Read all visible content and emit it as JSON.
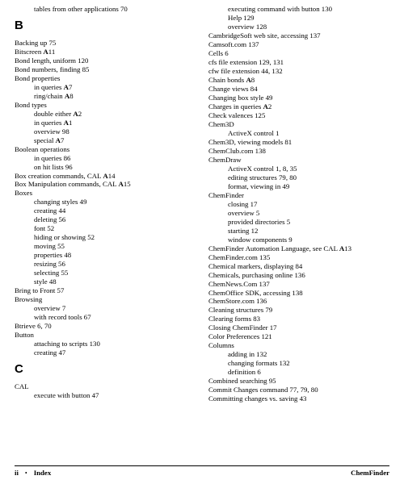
{
  "left_column": {
    "top_line": "tables from other applications 70",
    "sections": [
      {
        "letter": "B",
        "groups": [
          [
            {
              "t": "Backing up 75"
            },
            {
              "t": "Bitscreen ",
              "a": "A",
              "after": "11"
            },
            {
              "t": "Bond length, uniform 120"
            },
            {
              "t": "Bond numbers, finding 85"
            }
          ],
          [
            {
              "t": "Bond properties"
            },
            {
              "t": "in queries ",
              "a": "A",
              "after": "7",
              "sub": true
            },
            {
              "t": "ring/chain ",
              "a": "A",
              "after": "8",
              "sub": true
            }
          ],
          [
            {
              "t": "Bond types"
            },
            {
              "t": "double either ",
              "a": "A",
              "after": "2",
              "sub": true
            },
            {
              "t": "in queries ",
              "a": "A",
              "after": "1",
              "sub": true
            },
            {
              "t": "overview 98",
              "sub": true
            },
            {
              "t": "special ",
              "a": "A",
              "after": "7",
              "sub": true
            }
          ],
          [
            {
              "t": "Boolean operations"
            },
            {
              "t": "in queries 86",
              "sub": true
            },
            {
              "t": "on hit lists 96",
              "sub": true
            }
          ],
          [
            {
              "t": "Box creation commands, CAL ",
              "a": "A",
              "after": "14"
            },
            {
              "t": "Box Manipulation commands, CAL ",
              "a": "A",
              "after": "15"
            }
          ],
          [
            {
              "t": "Boxes"
            },
            {
              "t": "changing styles 49",
              "sub": true
            },
            {
              "t": "creating 44",
              "sub": true
            },
            {
              "t": "deleting 56",
              "sub": true
            },
            {
              "t": "font 52",
              "sub": true
            },
            {
              "t": "hiding or showing 52",
              "sub": true
            },
            {
              "t": "moving 55",
              "sub": true
            },
            {
              "t": "properties 48",
              "sub": true
            },
            {
              "t": "resizing 56",
              "sub": true
            },
            {
              "t": "selecting 55",
              "sub": true
            },
            {
              "t": "style 48",
              "sub": true
            }
          ],
          [
            {
              "t": "Bring to Front 57"
            }
          ],
          [
            {
              "t": "Browsing"
            },
            {
              "t": "overview 7",
              "sub": true
            },
            {
              "t": "with record tools 67",
              "sub": true
            }
          ],
          [
            {
              "t": "Btrieve 6, 70"
            }
          ],
          [
            {
              "t": "Button"
            },
            {
              "t": "attaching to scripts 130",
              "sub": true
            },
            {
              "t": "creating 47",
              "sub": true
            }
          ]
        ]
      },
      {
        "letter": "C",
        "groups": [
          [
            {
              "t": "CAL"
            },
            {
              "t": "execute with button 47",
              "sub": true
            }
          ]
        ]
      }
    ]
  },
  "right_column": {
    "groups": [
      [
        {
          "t": "executing command with button 130",
          "sub": true
        },
        {
          "t": "Help 129",
          "sub": true
        },
        {
          "t": "overview 128",
          "sub": true
        }
      ],
      [
        {
          "t": "CambridgeSoft web site, accessing 137"
        },
        {
          "t": "Camsoft.com 137"
        },
        {
          "t": "Cells 6"
        },
        {
          "t": "cfs file extension 129, 131"
        },
        {
          "t": "cfw file extension 44, 132"
        },
        {
          "t": "Chain bonds ",
          "a": "A",
          "after": "8"
        },
        {
          "t": "Change views 84"
        },
        {
          "t": "Changing box style 49"
        },
        {
          "t": "Charges in queries ",
          "a": "A",
          "after": "2"
        },
        {
          "t": "Check valences 125"
        }
      ],
      [
        {
          "t": "Chem3D"
        },
        {
          "t": "ActiveX control 1",
          "sub": true
        }
      ],
      [
        {
          "t": "Chem3D, viewing models 81"
        },
        {
          "t": "ChemClub.com 138"
        }
      ],
      [
        {
          "t": "ChemDraw"
        },
        {
          "t": "ActiveX control 1, 8, 35",
          "sub": true
        },
        {
          "t": "editing structures 79, 80",
          "sub": true
        },
        {
          "t": "format, viewing in 49",
          "sub": true
        }
      ],
      [
        {
          "t": "ChemFinder"
        },
        {
          "t": "closing 17",
          "sub": true
        },
        {
          "t": "overview 5",
          "sub": true
        },
        {
          "t": "provided directories 5",
          "sub": true
        },
        {
          "t": "starting 12",
          "sub": true
        },
        {
          "t": "window components 9",
          "sub": true
        }
      ],
      [
        {
          "t": "ChemFinder Automation Language, see CAL ",
          "a": "A",
          "after": "13"
        },
        {
          "t": "ChemFinder.com 135"
        },
        {
          "t": "Chemical markers, displaying 84"
        },
        {
          "t": "Chemicals, purchasing online 136"
        },
        {
          "t": "ChemNews.Com 137"
        },
        {
          "t": "ChemOffice SDK, accessing 138"
        },
        {
          "t": "ChemStore.com 136"
        },
        {
          "t": "Cleaning structures 79"
        },
        {
          "t": "Clearing forms 83"
        },
        {
          "t": "Closing ChemFinder 17"
        },
        {
          "t": "Color Preferences 121"
        }
      ],
      [
        {
          "t": "Columns"
        },
        {
          "t": "adding in 132",
          "sub": true
        },
        {
          "t": "changing formats 132",
          "sub": true
        },
        {
          "t": "definition 6",
          "sub": true
        }
      ],
      [
        {
          "t": "Combined searching 95"
        },
        {
          "t": "Commit Changes command 77, 79, 80"
        },
        {
          "t": "Committing changes vs. saving 43"
        }
      ]
    ]
  },
  "footer": {
    "page": "ii",
    "section": "Index",
    "product": "ChemFinder"
  }
}
